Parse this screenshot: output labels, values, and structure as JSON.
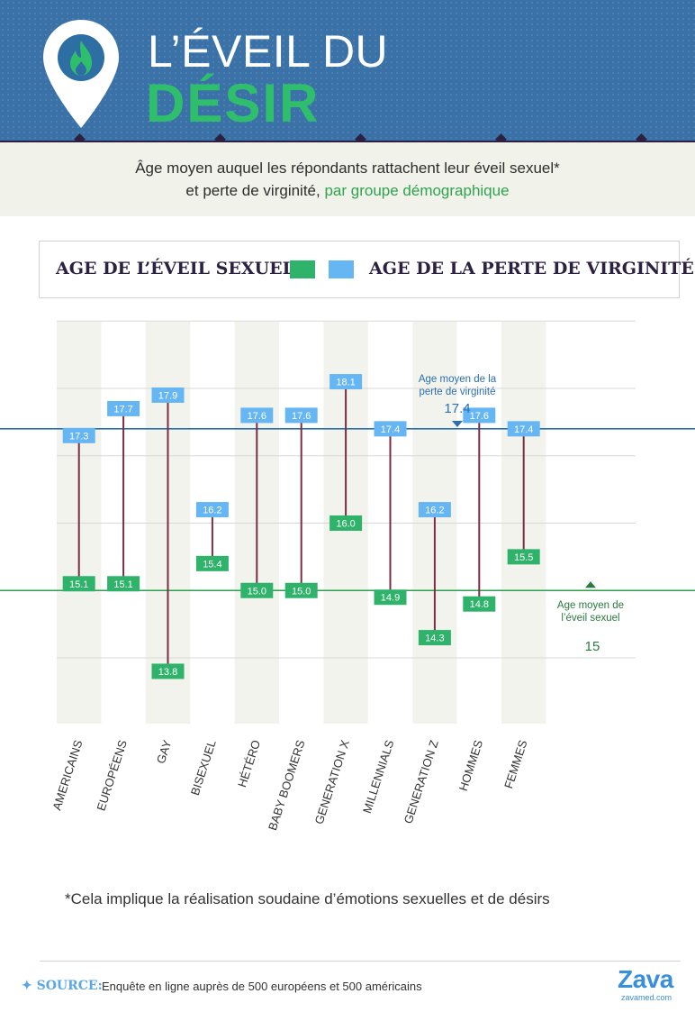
{
  "header": {
    "title_line1": "L’ÉVEIL DU",
    "title_line2": "DÉSIR",
    "icon": "flame-pin-icon"
  },
  "subtitle": {
    "line1": "Âge moyen auquel les répondants rattachent leur éveil sexuel*",
    "line2_prefix": "et perte de virginité, ",
    "line2_highlight": "par groupe démographique"
  },
  "legend": {
    "awakening": "AGE DE L’ÉVEIL SEXUEL*",
    "virginity": "AGE DE LA PERTE DE VIRGINITÉ"
  },
  "chart_data": {
    "type": "range-dot",
    "categories": [
      "AMERICAINS",
      "EUROPÉENS",
      "GAY",
      "BISEXUEL",
      "HÉTÉRO",
      "BABY BOOMERS",
      "GENERATION X",
      "MILLENNIALS",
      "GENERATION Z",
      "HOMMES",
      "FEMMES"
    ],
    "series": [
      {
        "name": "AGE DE L’ÉVEIL SEXUEL*",
        "values": [
          15.1,
          15.1,
          13.8,
          15.4,
          15.0,
          15.0,
          16.0,
          14.9,
          14.3,
          14.8,
          15.5
        ],
        "color": "#2fb36b"
      },
      {
        "name": "AGE DE LA PERTE DE VIRGINITÉ",
        "values": [
          17.3,
          17.7,
          17.9,
          16.2,
          17.6,
          17.6,
          18.1,
          17.4,
          16.2,
          17.6,
          17.4
        ],
        "color": "#67b6f4"
      }
    ],
    "ylim": [
      13,
      19
    ],
    "grid": true,
    "reference_lines": [
      {
        "label_line1": "Age moyen de la",
        "label_line2": "perte de virginité",
        "value": 17.4,
        "color": "#2a6fb0"
      },
      {
        "label_line1": "Age moyen de",
        "label_line2": "l’éveil sexuel",
        "value": 15,
        "color": "#2ea04e"
      }
    ]
  },
  "footnote": "*Cela implique la réalisation soudaine d’émotions sexuelles et de désirs",
  "source": {
    "label": "SOURCE:",
    "text": "Enquête en ligne auprès de 500 européens et 500 américains"
  },
  "logo": {
    "name": "Zava",
    "url": "zavamed.com"
  }
}
